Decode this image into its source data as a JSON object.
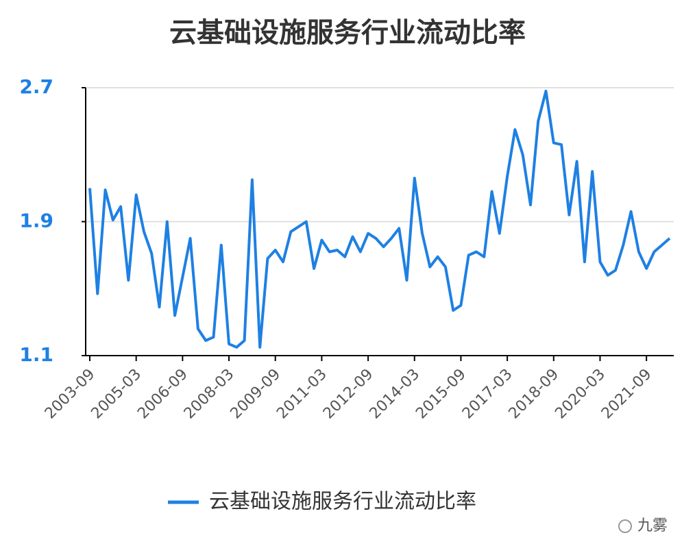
{
  "chart_data": {
    "type": "line",
    "title": "云基础设施服务行业流动比率",
    "categories": [
      "2003-09",
      null,
      null,
      null,
      null,
      null,
      "2005-03",
      null,
      null,
      null,
      null,
      null,
      "2006-09",
      null,
      null,
      null,
      null,
      null,
      "2008-03",
      null,
      null,
      null,
      null,
      null,
      "2009-09",
      null,
      null,
      null,
      null,
      null,
      "2011-03",
      null,
      null,
      null,
      null,
      null,
      "2012-09",
      null,
      null,
      null,
      null,
      null,
      "2014-03",
      null,
      null,
      null,
      null,
      null,
      "2015-09",
      null,
      null,
      null,
      null,
      null,
      "2017-03",
      null,
      null,
      null,
      null,
      null,
      "2018-09",
      null,
      null,
      null,
      null,
      null,
      "2020-03",
      null,
      null,
      null,
      null,
      null,
      "2021-09",
      null,
      null,
      null
    ],
    "series": [
      {
        "name": "云基础设施服务行业流动比率",
        "color": "#1e80e3",
        "values": [
          2.1,
          1.47,
          2.09,
          1.91,
          1.99,
          1.55,
          2.06,
          1.84,
          1.71,
          1.39,
          1.9,
          1.34,
          1.57,
          1.8,
          1.26,
          1.19,
          1.21,
          1.76,
          1.17,
          1.15,
          1.19,
          2.15,
          1.15,
          1.68,
          1.73,
          1.66,
          1.84,
          1.87,
          1.9,
          1.62,
          1.79,
          1.72,
          1.73,
          1.69,
          1.81,
          1.72,
          1.83,
          1.8,
          1.75,
          1.8,
          1.86,
          1.55,
          2.16,
          1.83,
          1.63,
          1.69,
          1.63,
          1.37,
          1.4,
          1.7,
          1.72,
          1.69,
          2.08,
          1.83,
          2.17,
          2.45,
          2.3,
          2.0,
          2.5,
          2.68,
          2.37,
          2.36,
          1.94,
          2.26,
          1.66,
          2.2,
          1.66,
          1.58,
          1.61,
          1.76,
          1.96,
          1.72,
          1.62,
          1.72,
          1.76,
          1.8
        ]
      }
    ],
    "ylim": [
      1.1,
      2.7
    ],
    "yticks": [
      1.1,
      1.9,
      2.7
    ],
    "grid": true,
    "legend": "bottom",
    "watermark": "九雾"
  }
}
